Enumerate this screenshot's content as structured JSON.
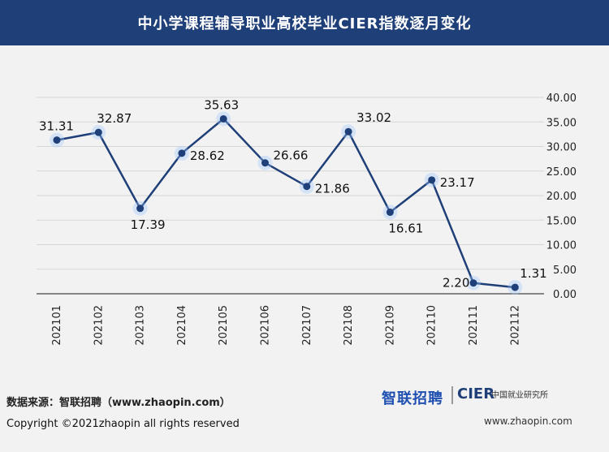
{
  "header": {
    "title": "中小学课程辅导职业高校毕业CIER指数逐月变化"
  },
  "chart_data": {
    "type": "line",
    "title": "中小学课程辅导职业高校毕业CIER指数逐月变化",
    "categories": [
      "202101",
      "202102",
      "202103",
      "202104",
      "202105",
      "202106",
      "202107",
      "202108",
      "202109",
      "202110",
      "202111",
      "202112"
    ],
    "series": [
      {
        "values": [
          31.31,
          32.87,
          17.39,
          28.62,
          35.63,
          26.66,
          21.86,
          33.02,
          16.61,
          23.17,
          2.2,
          1.31
        ]
      }
    ],
    "data_labels": [
      "31.31",
      "32.87",
      "17.39",
      "28.62",
      "35.63",
      "26.66",
      "21.86",
      "33.02",
      "16.61",
      "23.17",
      "2.20",
      "1.31"
    ],
    "y_ticks": [
      "40.00",
      "35.00",
      "30.00",
      "25.00",
      "20.00",
      "15.00",
      "10.00",
      "5.00",
      "0.00"
    ],
    "ylim": [
      0,
      40
    ],
    "grid": true,
    "axis_position": "right",
    "line_color": "#1f3f78",
    "xlabel": "",
    "ylabel": ""
  },
  "footer": {
    "source": "数据来源：智联招聘（www.zhaopin.com）",
    "logo_zhaopin": "智联招聘",
    "logo_cier": "CIER",
    "logo_cier_sub": "中国就业研究所",
    "url": "www.zhaopin.com",
    "copyright": "Copyright ©2021zhaopin all rights reserved"
  }
}
